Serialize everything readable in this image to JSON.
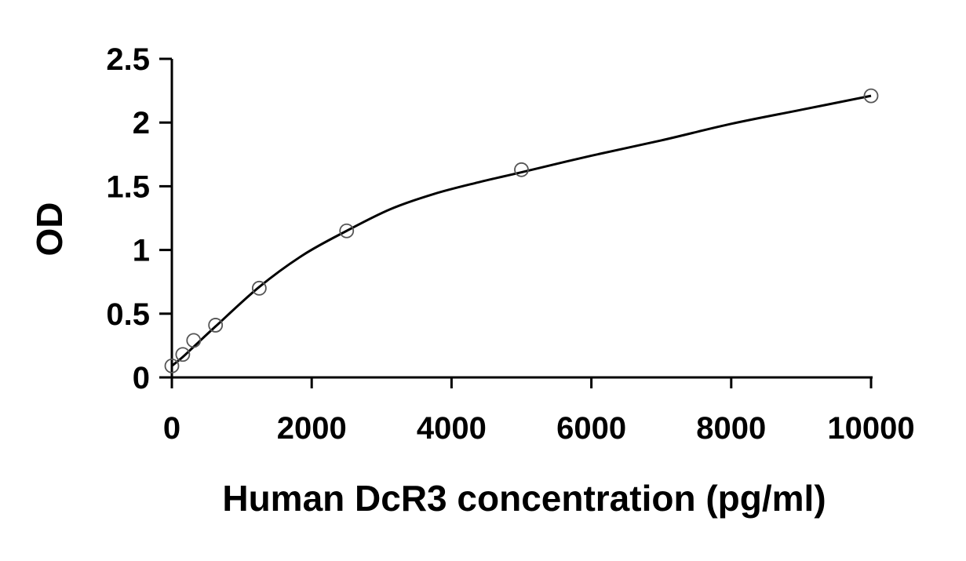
{
  "chart_data": {
    "type": "scatter",
    "title": "",
    "xlabel": "Human DcR3 concentration (pg/ml)",
    "ylabel": "OD",
    "xlim": [
      0,
      10000
    ],
    "ylim": [
      0,
      2.5
    ],
    "x_ticks": [
      0,
      2000,
      4000,
      6000,
      8000,
      10000
    ],
    "y_ticks": [
      0,
      0.5,
      1,
      1.5,
      2,
      2.5
    ],
    "x_tick_labels": [
      "0",
      "2000",
      "4000",
      "6000",
      "8000",
      "10000"
    ],
    "y_tick_labels": [
      "0",
      "0.5",
      "1",
      "1.5",
      "2",
      "2.5"
    ],
    "grid": false,
    "legend": "none",
    "series": [
      {
        "marker": "open-circle",
        "x": [
          0,
          156,
          312,
          625,
          1250,
          2500,
          5000,
          10000
        ],
        "y": [
          0.09,
          0.18,
          0.29,
          0.41,
          0.7,
          1.15,
          1.63,
          2.21
        ]
      }
    ],
    "fit_curve": {
      "x": [
        0,
        156,
        312,
        625,
        1250,
        1875,
        2500,
        3125,
        3750,
        4375,
        5000,
        6000,
        7000,
        8000,
        9000,
        10000
      ],
      "y": [
        0.09,
        0.16,
        0.24,
        0.4,
        0.71,
        0.96,
        1.15,
        1.32,
        1.44,
        1.53,
        1.61,
        1.74,
        1.86,
        1.99,
        2.1,
        2.21
      ]
    },
    "colors": {
      "axis": "#000000",
      "curve": "#000000",
      "marker_stroke": "#555555",
      "background": "#ffffff"
    }
  }
}
